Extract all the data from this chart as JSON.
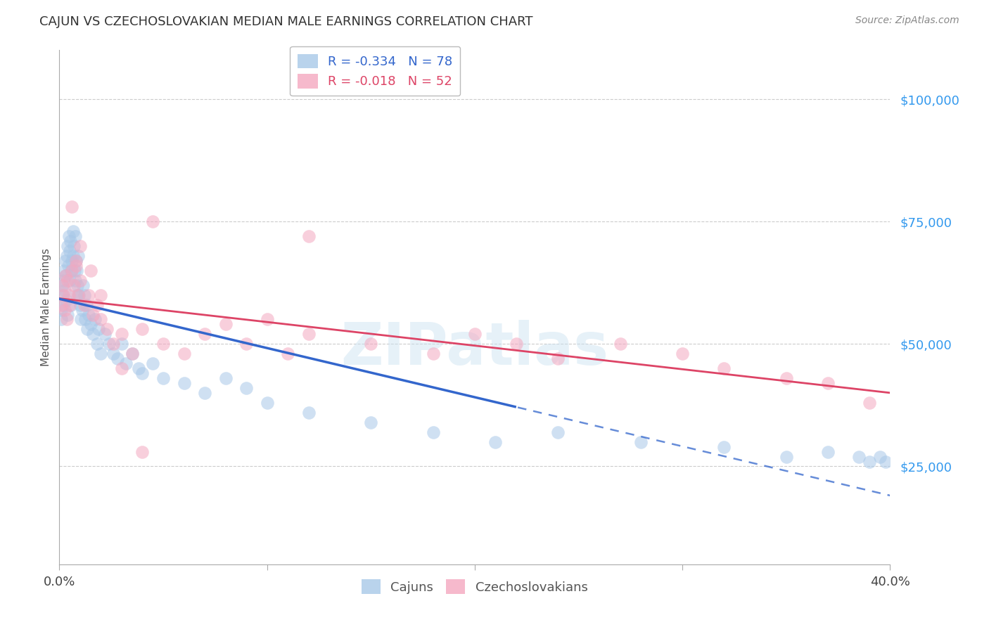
{
  "title": "CAJUN VS CZECHOSLOVAKIAN MEDIAN MALE EARNINGS CORRELATION CHART",
  "source": "Source: ZipAtlas.com",
  "ylabel": "Median Male Earnings",
  "ytick_labels": [
    "$25,000",
    "$50,000",
    "$75,000",
    "$100,000"
  ],
  "ytick_values": [
    25000,
    50000,
    75000,
    100000
  ],
  "ylim": [
    5000,
    110000
  ],
  "xlim": [
    0.0,
    0.4
  ],
  "legend_cajun_r": "-0.334",
  "legend_cajun_n": "78",
  "legend_czech_r": "-0.018",
  "legend_czech_n": "52",
  "cajun_color": "#a8c8e8",
  "czech_color": "#f4a8c0",
  "cajun_line_color": "#3366cc",
  "czech_line_color": "#dd4466",
  "watermark": "ZIPatlas",
  "background_color": "#ffffff",
  "grid_color": "#cccccc",
  "cajun_x": [
    0.0008,
    0.001,
    0.0012,
    0.0015,
    0.0018,
    0.002,
    0.0022,
    0.0025,
    0.0028,
    0.003,
    0.0032,
    0.0035,
    0.0038,
    0.004,
    0.0042,
    0.0045,
    0.0048,
    0.005,
    0.0052,
    0.0055,
    0.0058,
    0.006,
    0.0065,
    0.0068,
    0.007,
    0.0072,
    0.0075,
    0.0078,
    0.008,
    0.0082,
    0.0085,
    0.0088,
    0.009,
    0.0095,
    0.01,
    0.0105,
    0.011,
    0.0115,
    0.012,
    0.0125,
    0.013,
    0.0135,
    0.014,
    0.015,
    0.016,
    0.017,
    0.018,
    0.019,
    0.02,
    0.022,
    0.024,
    0.026,
    0.028,
    0.03,
    0.032,
    0.035,
    0.038,
    0.04,
    0.045,
    0.05,
    0.06,
    0.07,
    0.08,
    0.09,
    0.1,
    0.12,
    0.15,
    0.18,
    0.21,
    0.24,
    0.28,
    0.32,
    0.35,
    0.37,
    0.385,
    0.39,
    0.395,
    0.398
  ],
  "cajun_y": [
    55000,
    57000,
    62000,
    60000,
    63000,
    58000,
    65000,
    61000,
    64000,
    67000,
    59000,
    68000,
    56000,
    70000,
    66000,
    72000,
    69000,
    63000,
    71000,
    65000,
    58000,
    67000,
    73000,
    68000,
    70000,
    65000,
    72000,
    63000,
    67000,
    60000,
    65000,
    62000,
    68000,
    60000,
    58000,
    55000,
    57000,
    62000,
    60000,
    55000,
    58000,
    53000,
    56000,
    54000,
    52000,
    55000,
    50000,
    53000,
    48000,
    52000,
    50000,
    48000,
    47000,
    50000,
    46000,
    48000,
    45000,
    44000,
    46000,
    43000,
    42000,
    40000,
    43000,
    41000,
    38000,
    36000,
    34000,
    32000,
    30000,
    32000,
    30000,
    29000,
    27000,
    28000,
    27000,
    26000,
    27000,
    26000
  ],
  "cajun_cutoff": 0.22,
  "czech_x": [
    0.001,
    0.0015,
    0.002,
    0.0025,
    0.003,
    0.0035,
    0.004,
    0.0045,
    0.005,
    0.006,
    0.007,
    0.008,
    0.009,
    0.01,
    0.012,
    0.014,
    0.016,
    0.018,
    0.02,
    0.023,
    0.026,
    0.03,
    0.035,
    0.04,
    0.05,
    0.06,
    0.07,
    0.08,
    0.09,
    0.1,
    0.11,
    0.12,
    0.15,
    0.18,
    0.2,
    0.22,
    0.24,
    0.27,
    0.3,
    0.32,
    0.35,
    0.37,
    0.39,
    0.12,
    0.045,
    0.008,
    0.006,
    0.01,
    0.015,
    0.02,
    0.03,
    0.04
  ],
  "czech_y": [
    58000,
    62000,
    60000,
    57000,
    64000,
    55000,
    63000,
    60000,
    58000,
    65000,
    62000,
    66000,
    60000,
    63000,
    58000,
    60000,
    56000,
    58000,
    55000,
    53000,
    50000,
    52000,
    48000,
    53000,
    50000,
    48000,
    52000,
    54000,
    50000,
    55000,
    48000,
    52000,
    50000,
    48000,
    52000,
    50000,
    47000,
    50000,
    48000,
    45000,
    43000,
    42000,
    38000,
    72000,
    75000,
    67000,
    78000,
    70000,
    65000,
    60000,
    45000,
    28000
  ]
}
